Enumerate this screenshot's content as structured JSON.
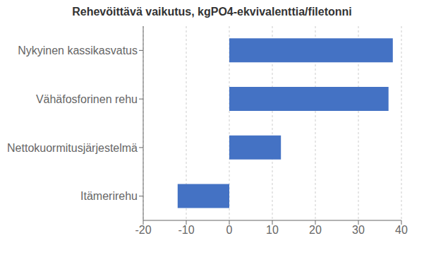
{
  "chart_data": {
    "type": "bar",
    "title": "Rehevöittävä vaikutus, kgPO4-ekvivalenttia/filetonni",
    "categories": [
      "Itämerirehu",
      "Nettokuormitusjärjestelmä",
      "Vähäfosforinen rehu",
      "Nykyinen kassikasvatus"
    ],
    "values": [
      -12,
      12,
      37,
      38
    ],
    "color": "#4472c4",
    "orientation": "horizontal",
    "xlim": [
      -20,
      40
    ],
    "xticks": [
      -20,
      -10,
      0,
      10,
      20,
      30,
      40
    ],
    "grid": true
  }
}
